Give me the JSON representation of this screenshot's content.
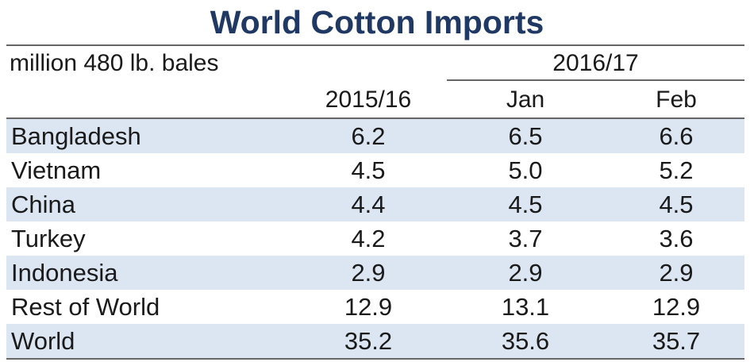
{
  "chart_data": {
    "type": "table",
    "title": "World Cotton Imports",
    "units": "million 480 lb. bales",
    "column_group": "2016/17",
    "columns": [
      "2015/16",
      "Jan",
      "Feb"
    ],
    "rows": [
      {
        "name": "Bangladesh",
        "values": [
          "6.2",
          "6.5",
          "6.6"
        ]
      },
      {
        "name": "Vietnam",
        "values": [
          "4.5",
          "5.0",
          "5.2"
        ]
      },
      {
        "name": "China",
        "values": [
          "4.4",
          "4.5",
          "4.5"
        ]
      },
      {
        "name": "Turkey",
        "values": [
          "4.2",
          "3.7",
          "3.6"
        ]
      },
      {
        "name": "Indonesia",
        "values": [
          "2.9",
          "2.9",
          "2.9"
        ]
      },
      {
        "name": "Rest of World",
        "values": [
          "12.9",
          "13.1",
          "12.9"
        ]
      },
      {
        "name": "World",
        "values": [
          "35.2",
          "35.6",
          "35.7"
        ]
      }
    ],
    "colors": {
      "title": "#1f3864",
      "stripe": "#dce6f2",
      "rule": "#666666"
    }
  }
}
